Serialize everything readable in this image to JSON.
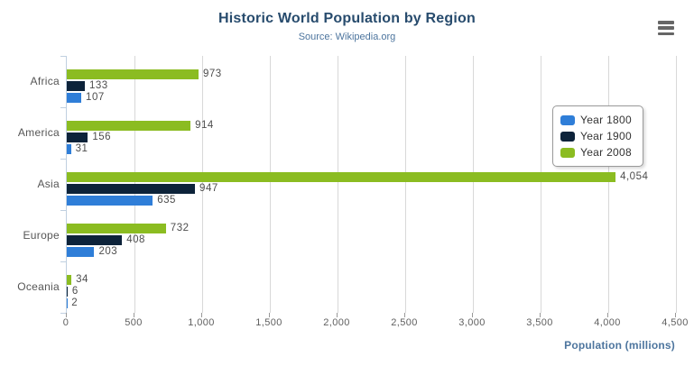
{
  "header": {
    "title": "Historic World Population by Region",
    "subtitle": "Source: Wikipedia.org"
  },
  "toolbar": {
    "context_menu_icon": "hamburger-menu-icon"
  },
  "chart_data": {
    "type": "bar",
    "orientation": "horizontal",
    "title": "Historic World Population by Region",
    "subtitle": "Source: Wikipedia.org",
    "categories": [
      "Africa",
      "America",
      "Asia",
      "Europe",
      "Oceania"
    ],
    "series": [
      {
        "name": "Year 1800",
        "color": "#2f7ed8",
        "values": [
          107,
          31,
          635,
          203,
          2
        ],
        "labels": [
          "107",
          "31",
          "635",
          "203",
          "2"
        ]
      },
      {
        "name": "Year 1900",
        "color": "#0d233a",
        "values": [
          133,
          156,
          947,
          408,
          6
        ],
        "labels": [
          "133",
          "156",
          "947",
          "408",
          "6"
        ]
      },
      {
        "name": "Year 2008",
        "color": "#8bbc21",
        "values": [
          973,
          914,
          4054,
          732,
          34
        ],
        "labels": [
          "973",
          "914",
          "4,054",
          "732",
          "34"
        ]
      }
    ],
    "bar_order_top_to_bottom": [
      "Year 2008",
      "Year 1900",
      "Year 1800"
    ],
    "xlabel": "Population (millions)",
    "ylabel": "",
    "xlim": [
      0,
      4500
    ],
    "tick_interval": 500,
    "x_tick_labels": [
      "0",
      "500",
      "1,000",
      "1,500",
      "2,000",
      "2,500",
      "3,000",
      "3,500",
      "4,000",
      "4,500"
    ],
    "grid": true,
    "legend_position": "right",
    "colors": {
      "title": "#274b6d",
      "subtitle": "#4d759e",
      "axis_title": "#4d759e",
      "grid_line": "#d8d8d8",
      "category_axis_line": "#c0d0e0",
      "tick": "#999999",
      "axis_label": "#606060",
      "data_label": "#4d4d4d",
      "legend_border": "#999999",
      "menu_icon": "#666666",
      "background": "#ffffff"
    }
  }
}
